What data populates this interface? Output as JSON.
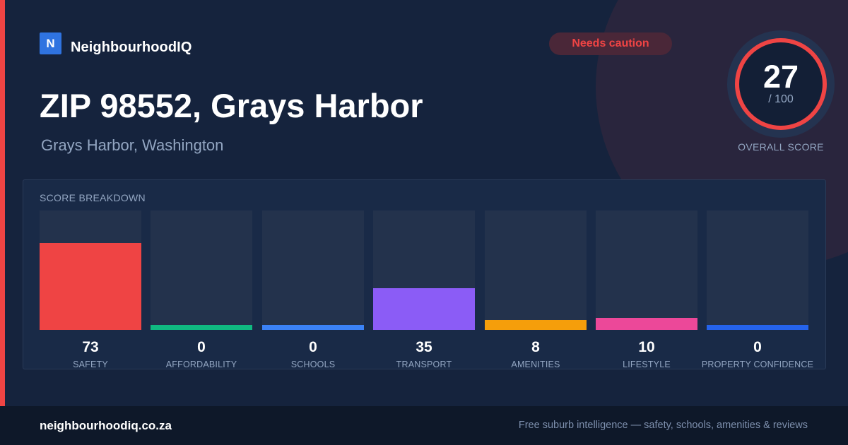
{
  "brand": {
    "logo_letter": "N",
    "name": "NeighbourhoodIQ"
  },
  "badge": {
    "label": "Needs caution",
    "color": "#ef4444"
  },
  "location": {
    "title": "ZIP 98552, Grays Harbor",
    "subtitle": "Grays Harbor, Washington"
  },
  "overall": {
    "score": 27,
    "score_label": "27",
    "max_label": "/ 100",
    "caption": "OVERALL SCORE",
    "ring_color": "#ef4444"
  },
  "breakdown": {
    "title": "SCORE BREAKDOWN"
  },
  "chart_data": {
    "type": "bar",
    "ylim": [
      0,
      100
    ],
    "categories": [
      "SAFETY",
      "AFFORDABILITY",
      "SCHOOLS",
      "TRANSPORT",
      "AMENITIES",
      "LIFESTYLE",
      "PROPERTY CONFIDENCE"
    ],
    "values": [
      73,
      0,
      0,
      35,
      8,
      10,
      0
    ],
    "colors": [
      "#ef4444",
      "#10b981",
      "#3b82f6",
      "#8b5cf6",
      "#f59e0b",
      "#ec4899",
      "#2563eb"
    ]
  },
  "footer": {
    "domain": "neighbourhoodiq.co.za",
    "tagline": "Free suburb intelligence — safety, schools, amenities & reviews"
  }
}
